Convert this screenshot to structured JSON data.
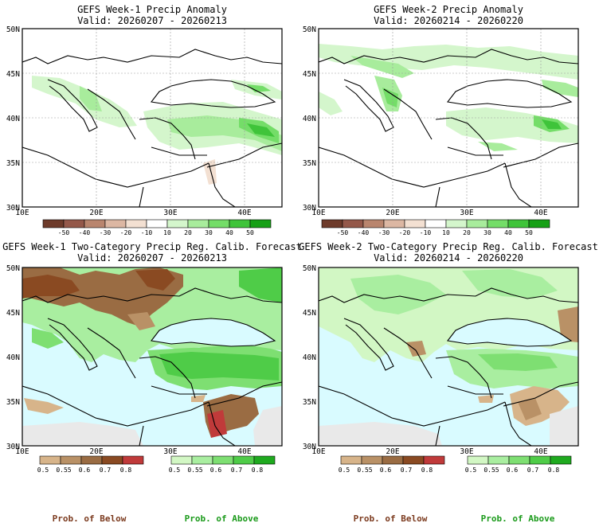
{
  "panels": [
    {
      "title": "GEFS Week-1 Precip Anomaly",
      "valid": "Valid: 20260207 - 20260213",
      "x_ticks": [
        "10E",
        "20E",
        "30E",
        "40E"
      ],
      "y_ticks": [
        "50N",
        "45N",
        "40N",
        "35N",
        "30N"
      ]
    },
    {
      "title": "GEFS Week-2 Precip Anomaly",
      "valid": "Valid: 20260214 - 20260220",
      "x_ticks": [
        "10E",
        "20E",
        "30E",
        "40E"
      ],
      "y_ticks": [
        "50N",
        "45N",
        "40N",
        "35N",
        "30N"
      ]
    },
    {
      "title": "GEFS Week-1 Two-Category Precip Reg. Calib. Forecast",
      "valid": "Valid: 20260207 - 20260213",
      "x_ticks": [
        "10E",
        "20E",
        "30E",
        "40E"
      ],
      "y_ticks": [
        "50N",
        "45N",
        "40N",
        "35N",
        "30N"
      ]
    },
    {
      "title": "GEFS Week-2 Two-Category Precip Reg. Calib. Forecast",
      "valid": "Valid: 20260214 - 20260220",
      "x_ticks": [
        "10E",
        "20E",
        "30E",
        "40E"
      ],
      "y_ticks": [
        "50N",
        "45N",
        "40N",
        "35N",
        "30N"
      ]
    }
  ],
  "anomaly_colorbar": {
    "labels": [
      "-50",
      "-40",
      "-30",
      "-20",
      "-10",
      "10",
      "20",
      "30",
      "40",
      "50"
    ],
    "colors": [
      "#6e3b2b",
      "#94584a",
      "#b9856e",
      "#dcb7a3",
      "#f3e0d2",
      "#ffffff",
      "#d4f6cc",
      "#a8ec9c",
      "#74dd68",
      "#3fc43a",
      "#16a016"
    ]
  },
  "prob_colorbars": {
    "below_labels": [
      "0.5",
      "0.55",
      "0.6",
      "0.7",
      "0.8"
    ],
    "below_colors": [
      "#d7b48a",
      "#b99166",
      "#9a6c43",
      "#8a4a22",
      "#c03a3a"
    ],
    "above_labels": [
      "0.5",
      "0.55",
      "0.6",
      "0.7",
      "0.8"
    ],
    "above_colors": [
      "#d2f7c4",
      "#a9eea0",
      "#7edf72",
      "#4fcc48",
      "#1faa1f"
    ],
    "label_below": "Prob. of Below",
    "label_above": "Prob. of Above"
  },
  "colors": {
    "sea_prob": "#d9fbff",
    "land_near_normal": "#e9e9e9"
  }
}
